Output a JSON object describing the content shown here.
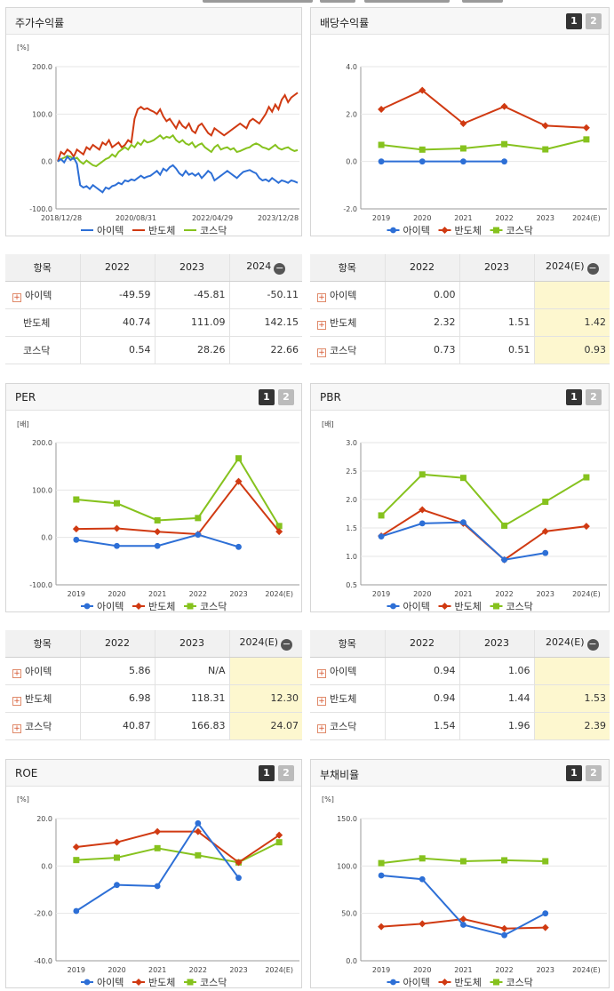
{
  "legend": [
    "아이텍",
    "반도체",
    "코스닥"
  ],
  "colors": {
    "아이텍": "#2d6fd6",
    "반도체": "#d03a12",
    "코스닥": "#86c21e"
  },
  "stock_table": {
    "head": [
      "항목",
      "2022",
      "2023",
      "2024"
    ],
    "rows": [
      {
        "name": "아이텍",
        "plus": true,
        "vals": [
          "-49.59",
          "-45.81",
          "-50.11"
        ],
        "hl": false
      },
      {
        "name": "반도체",
        "plus": false,
        "vals": [
          "40.74",
          "111.09",
          "142.15"
        ],
        "hl": false
      },
      {
        "name": "코스닥",
        "plus": false,
        "vals": [
          "0.54",
          "28.26",
          "22.66"
        ],
        "hl": false
      }
    ]
  },
  "dividend_table": {
    "head": [
      "항목",
      "2022",
      "2023",
      "2024(E)"
    ],
    "rows": [
      {
        "name": "아이텍",
        "plus": true,
        "vals": [
          "0.00",
          "",
          ""
        ],
        "hl": true
      },
      {
        "name": "반도체",
        "plus": true,
        "vals": [
          "2.32",
          "1.51",
          "1.42"
        ],
        "hl": true
      },
      {
        "name": "코스닥",
        "plus": true,
        "vals": [
          "0.73",
          "0.51",
          "0.93"
        ],
        "hl": true
      }
    ]
  },
  "per_table": {
    "head": [
      "항목",
      "2022",
      "2023",
      "2024(E)"
    ],
    "rows": [
      {
        "name": "아이텍",
        "plus": true,
        "vals": [
          "5.86",
          "N/A",
          ""
        ],
        "hl": true
      },
      {
        "name": "반도체",
        "plus": true,
        "vals": [
          "6.98",
          "118.31",
          "12.30"
        ],
        "hl": true
      },
      {
        "name": "코스닥",
        "plus": true,
        "vals": [
          "40.87",
          "166.83",
          "24.07"
        ],
        "hl": true
      }
    ]
  },
  "pbr_table": {
    "head": [
      "항목",
      "2022",
      "2023",
      "2024(E)"
    ],
    "rows": [
      {
        "name": "아이텍",
        "plus": true,
        "vals": [
          "0.94",
          "1.06",
          ""
        ],
        "hl": true
      },
      {
        "name": "반도체",
        "plus": true,
        "vals": [
          "0.94",
          "1.44",
          "1.53"
        ],
        "hl": true
      },
      {
        "name": "코스닥",
        "plus": true,
        "vals": [
          "1.54",
          "1.96",
          "2.39"
        ],
        "hl": true
      }
    ]
  },
  "chart_data": [
    {
      "id": "stock",
      "title": "주가수익률",
      "type": "line",
      "unit": "[%]",
      "pager": false,
      "ylim": [
        -100,
        200
      ],
      "yticks": [
        "200.0",
        "100.0",
        "0.0",
        "-100.0"
      ],
      "xlabels": [
        "2018/12/28",
        "2020/08/31",
        "2022/04/29",
        "2023/12/28"
      ],
      "series": [
        {
          "name": "아이텍",
          "values": [
            0,
            5,
            -2,
            10,
            3,
            8,
            -5,
            -50,
            -55,
            -52,
            -58,
            -50,
            -55,
            -60,
            -65,
            -55,
            -58,
            -52,
            -50,
            -45,
            -48,
            -40,
            -42,
            -38,
            -40,
            -35,
            -30,
            -35,
            -32,
            -30,
            -25,
            -20,
            -28,
            -15,
            -20,
            -12,
            -8,
            -15,
            -25,
            -30,
            -20,
            -28,
            -25,
            -30,
            -25,
            -35,
            -28,
            -20,
            -25,
            -40,
            -35,
            -30,
            -25,
            -20,
            -25,
            -30,
            -35,
            -28,
            -22,
            -20,
            -18,
            -22,
            -25,
            -35,
            -40,
            -38,
            -42,
            -35,
            -40,
            -45,
            -40,
            -42,
            -45,
            -40,
            -42,
            -45
          ]
        },
        {
          "name": "반도체",
          "values": [
            0,
            20,
            15,
            25,
            20,
            10,
            25,
            20,
            15,
            30,
            25,
            35,
            30,
            25,
            40,
            35,
            45,
            30,
            35,
            40,
            30,
            35,
            45,
            40,
            90,
            110,
            115,
            110,
            112,
            108,
            105,
            100,
            110,
            95,
            85,
            90,
            80,
            70,
            85,
            75,
            70,
            80,
            65,
            60,
            75,
            80,
            70,
            60,
            55,
            70,
            65,
            60,
            55,
            60,
            65,
            70,
            75,
            80,
            75,
            70,
            85,
            90,
            85,
            80,
            90,
            100,
            115,
            105,
            120,
            110,
            130,
            140,
            125,
            135,
            140,
            145
          ]
        },
        {
          "name": "코스닥",
          "values": [
            0,
            5,
            8,
            12,
            10,
            5,
            8,
            0,
            -5,
            2,
            -3,
            -8,
            -10,
            -5,
            0,
            5,
            8,
            15,
            10,
            20,
            25,
            30,
            25,
            35,
            30,
            40,
            35,
            45,
            40,
            42,
            45,
            50,
            55,
            48,
            52,
            50,
            55,
            45,
            40,
            45,
            38,
            35,
            40,
            30,
            35,
            38,
            30,
            25,
            20,
            30,
            35,
            25,
            28,
            30,
            25,
            28,
            20,
            22,
            25,
            28,
            30,
            35,
            38,
            35,
            30,
            28,
            25,
            30,
            35,
            28,
            25,
            28,
            30,
            25,
            22,
            24
          ]
        }
      ]
    },
    {
      "id": "dividend",
      "title": "배당수익률",
      "type": "line",
      "unit": "",
      "pager": true,
      "ylim": [
        -2,
        4
      ],
      "yticks": [
        "4.0",
        "2.0",
        "0.0",
        "-2.0"
      ],
      "categories": [
        "2019",
        "2020",
        "2021",
        "2022",
        "2023",
        "2024(E)"
      ],
      "series": [
        {
          "name": "아이텍",
          "values": [
            0.0,
            0.0,
            0.0,
            0.0,
            null,
            null
          ]
        },
        {
          "name": "반도체",
          "values": [
            2.2,
            3.0,
            1.6,
            2.32,
            1.51,
            1.42
          ]
        },
        {
          "name": "코스닥",
          "values": [
            0.7,
            0.5,
            0.55,
            0.73,
            0.51,
            0.93
          ]
        }
      ]
    },
    {
      "id": "per",
      "title": "PER",
      "type": "line",
      "unit": "[배]",
      "pager": true,
      "ylim": [
        -100,
        200
      ],
      "yticks": [
        "200.0",
        "100.0",
        "0.0",
        "-100.0"
      ],
      "categories": [
        "2019",
        "2020",
        "2021",
        "2022",
        "2023",
        "2024(E)"
      ],
      "series": [
        {
          "name": "아이텍",
          "values": [
            -5,
            -18,
            -18,
            5.86,
            -20,
            null
          ]
        },
        {
          "name": "반도체",
          "values": [
            18,
            19,
            12,
            6.98,
            118.31,
            12.3
          ]
        },
        {
          "name": "코스닥",
          "values": [
            80,
            72,
            36,
            40.87,
            166.83,
            24.07
          ]
        }
      ]
    },
    {
      "id": "pbr",
      "title": "PBR",
      "type": "line",
      "unit": "[배]",
      "pager": true,
      "ylim": [
        0.5,
        3.0
      ],
      "yticks": [
        "3.0",
        "2.5",
        "2.0",
        "1.5",
        "1.0",
        "0.5"
      ],
      "categories": [
        "2019",
        "2020",
        "2021",
        "2022",
        "2023",
        "2024(E)"
      ],
      "series": [
        {
          "name": "아이텍",
          "values": [
            1.35,
            1.58,
            1.6,
            0.94,
            1.06,
            null
          ]
        },
        {
          "name": "반도체",
          "values": [
            1.36,
            1.82,
            1.58,
            0.94,
            1.44,
            1.53
          ]
        },
        {
          "name": "코스닥",
          "values": [
            1.72,
            2.44,
            2.38,
            1.54,
            1.96,
            2.39
          ]
        }
      ]
    },
    {
      "id": "roe",
      "title": "ROE",
      "type": "line",
      "unit": "[%]",
      "pager": true,
      "ylim": [
        -40,
        20
      ],
      "yticks": [
        "20.0",
        "0.0",
        "-20.0",
        "-40.0"
      ],
      "categories": [
        "2019",
        "2020",
        "2021",
        "2022",
        "2023",
        "2024(E)"
      ],
      "series": [
        {
          "name": "아이텍",
          "values": [
            -19,
            -8,
            -8.5,
            18,
            -5,
            null
          ]
        },
        {
          "name": "반도체",
          "values": [
            8,
            10,
            14.5,
            14.5,
            1.5,
            13
          ]
        },
        {
          "name": "코스닥",
          "values": [
            2.5,
            3.5,
            7.5,
            4.5,
            1.5,
            10
          ]
        }
      ]
    },
    {
      "id": "debt",
      "title": "부채비율",
      "type": "line",
      "unit": "[%]",
      "pager": true,
      "ylim": [
        0,
        150
      ],
      "yticks": [
        "150.0",
        "100.0",
        "50.0",
        "0.0"
      ],
      "categories": [
        "2019",
        "2020",
        "2021",
        "2022",
        "2023",
        "2024(E)"
      ],
      "series": [
        {
          "name": "아이텍",
          "values": [
            90,
            86,
            38,
            27,
            50,
            null
          ]
        },
        {
          "name": "반도체",
          "values": [
            36,
            39,
            44,
            34,
            35,
            null
          ]
        },
        {
          "name": "코스닥",
          "values": [
            103,
            108,
            105,
            106,
            105,
            null
          ]
        }
      ]
    }
  ]
}
